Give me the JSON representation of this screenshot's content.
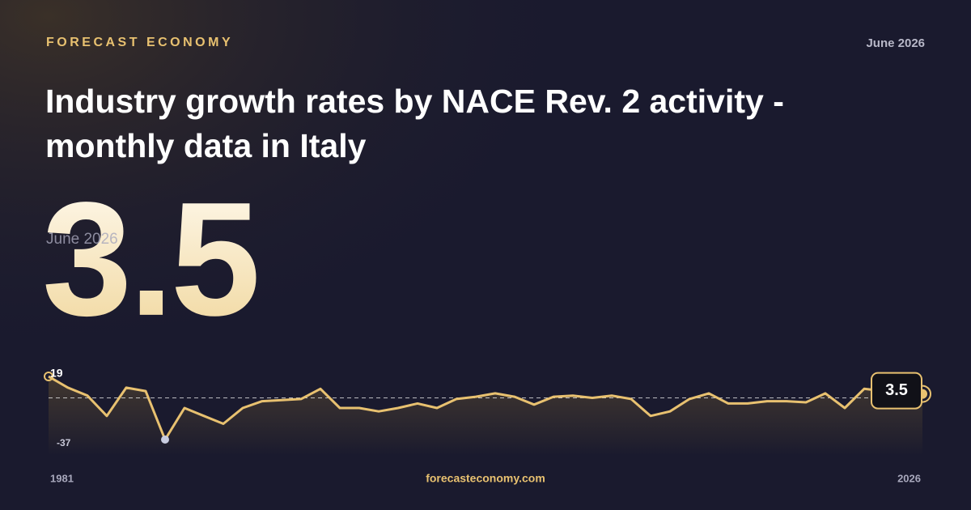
{
  "header": {
    "brand": "FORECAST ECONOMY",
    "date": "June 2026",
    "title": "Industry growth rates by NACE Rev. 2 activity - monthly data in Italy"
  },
  "chart_data": {
    "type": "line",
    "color": "#e8c170",
    "categories": [
      "1981",
      null,
      null,
      null,
      null,
      null,
      null,
      null,
      null,
      null,
      null,
      null,
      null,
      null,
      null,
      null,
      null,
      null,
      null,
      null,
      null,
      null,
      null,
      null,
      null,
      null,
      null,
      null,
      null,
      null,
      null,
      null,
      null,
      null,
      null,
      null,
      null,
      null,
      null,
      null,
      null,
      null,
      null,
      null,
      null,
      "2026"
    ],
    "values": [
      19,
      9,
      2,
      -16,
      9,
      6,
      -37,
      -9,
      -16,
      -23,
      -9,
      -3,
      -2,
      -1,
      8,
      -9,
      -9,
      -12,
      -9,
      -5,
      -9,
      -1,
      1,
      4,
      1,
      -6,
      1,
      2,
      0,
      2,
      -1,
      -16,
      -12,
      -1,
      4,
      -5,
      -5,
      -3,
      -3,
      -4,
      4,
      -9,
      8,
      6,
      6,
      3.5
    ],
    "ylim": [
      -37,
      19
    ]
  },
  "footer": {
    "site": "forecasteconomy.com"
  }
}
